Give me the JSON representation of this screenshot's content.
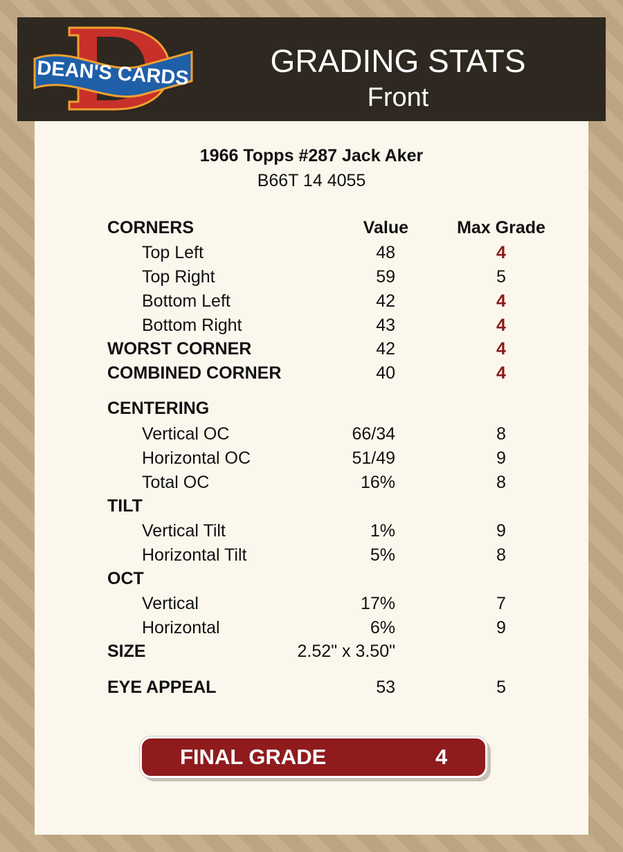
{
  "header": {
    "logo_text": "DEAN'S CARDS",
    "title": "GRADING STATS",
    "subtitle": "Front"
  },
  "card": {
    "title": "1966 Topps #287 Jack Aker",
    "code": "B66T 14 4055"
  },
  "columns": {
    "value": "Value",
    "max_grade": "Max Grade"
  },
  "colors": {
    "header_bg": "#2e2820",
    "panel_bg": "#fcf7ed",
    "low_grade": "#8b1a1a",
    "final_bg": "#8f1b1d"
  },
  "rows": [
    {
      "label": "CORNERS",
      "bold": true,
      "value": "",
      "max": "",
      "header": true
    },
    {
      "label": "Top Left",
      "value": "48",
      "max": "4",
      "flag": true
    },
    {
      "label": "Top Right",
      "value": "59",
      "max": "5"
    },
    {
      "label": "Bottom Left",
      "value": "42",
      "max": "4",
      "flag": true
    },
    {
      "label": "Bottom Right",
      "value": "43",
      "max": "4",
      "flag": true
    },
    {
      "label": "WORST CORNER",
      "bold": true,
      "value": "42",
      "max": "4",
      "flag": true
    },
    {
      "label": "COMBINED CORNER",
      "bold": true,
      "value": "40",
      "max": "4",
      "flag": true
    },
    {
      "label": "CENTERING",
      "bold": true,
      "value": "",
      "max": ""
    },
    {
      "label": "Vertical OC",
      "value": "66/34",
      "max": "8"
    },
    {
      "label": "Horizontal OC",
      "value": "51/49",
      "max": "9"
    },
    {
      "label": "Total OC",
      "value": "16%",
      "max": "8"
    },
    {
      "label": "TILT",
      "bold": true,
      "value": "",
      "max": ""
    },
    {
      "label": "Vertical Tilt",
      "value": "1%",
      "max": "9"
    },
    {
      "label": "Horizontal Tilt",
      "value": "5%",
      "max": "8"
    },
    {
      "label": "OCT",
      "bold": true,
      "value": "",
      "max": ""
    },
    {
      "label": "Vertical",
      "value": "17%",
      "max": "7"
    },
    {
      "label": "Horizontal",
      "value": "6%",
      "max": "9"
    },
    {
      "label": "SIZE",
      "bold": true,
      "value": "2.52\" x 3.50\"",
      "max": ""
    },
    {
      "label": "EYE APPEAL",
      "bold": true,
      "value": "53",
      "max": "5"
    }
  ],
  "final": {
    "label": "FINAL GRADE",
    "value": "4"
  }
}
